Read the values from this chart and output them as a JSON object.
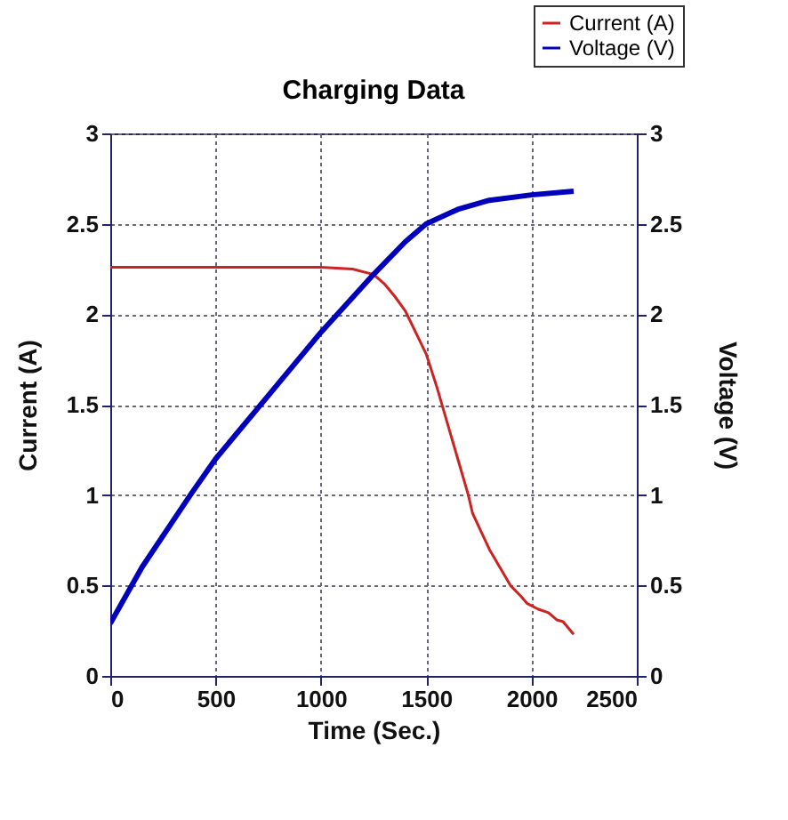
{
  "chart_data": {
    "type": "line",
    "title": "Charging Data",
    "xlabel": "Time (Sec.)",
    "ylabel": "Current (A)",
    "y2label": "Voltage (V)",
    "xlim": [
      0,
      2500
    ],
    "xticks": [
      0,
      500,
      1000,
      1500,
      2000,
      2500
    ],
    "ylim": [
      0,
      3
    ],
    "yticks": [
      0,
      0.5,
      1,
      1.5,
      2,
      2.5,
      3
    ],
    "y2lim": [
      0,
      3
    ],
    "y2ticks": [
      0,
      0.5,
      1,
      1.5,
      2,
      2.5,
      3
    ],
    "grid": true,
    "legend": "top right",
    "line_style": "solid",
    "series": [
      {
        "name": "Current (A)",
        "color": "#cc2222",
        "axis": "y",
        "x": [
          0,
          500,
          1000,
          1150,
          1250,
          1300,
          1350,
          1400,
          1450,
          1500,
          1550,
          1600,
          1650,
          1700,
          1720,
          1760,
          1800,
          1850,
          1900,
          1950,
          1980,
          2030,
          2080,
          2120,
          2150,
          2200
        ],
        "values": [
          2.26,
          2.26,
          2.26,
          2.25,
          2.22,
          2.17,
          2.1,
          2.02,
          1.9,
          1.78,
          1.6,
          1.4,
          1.2,
          1.0,
          0.9,
          0.8,
          0.7,
          0.6,
          0.5,
          0.44,
          0.4,
          0.37,
          0.35,
          0.31,
          0.3,
          0.23
        ]
      },
      {
        "name": "Voltage (V)",
        "color": "#0000bb",
        "axis": "y2",
        "x": [
          0,
          150,
          380,
          500,
          750,
          1000,
          1250,
          1400,
          1500,
          1650,
          1800,
          2000,
          2200
        ],
        "values": [
          0.29,
          0.6,
          1.0,
          1.2,
          1.55,
          1.9,
          2.22,
          2.4,
          2.5,
          2.58,
          2.63,
          2.66,
          2.68
        ]
      }
    ]
  }
}
